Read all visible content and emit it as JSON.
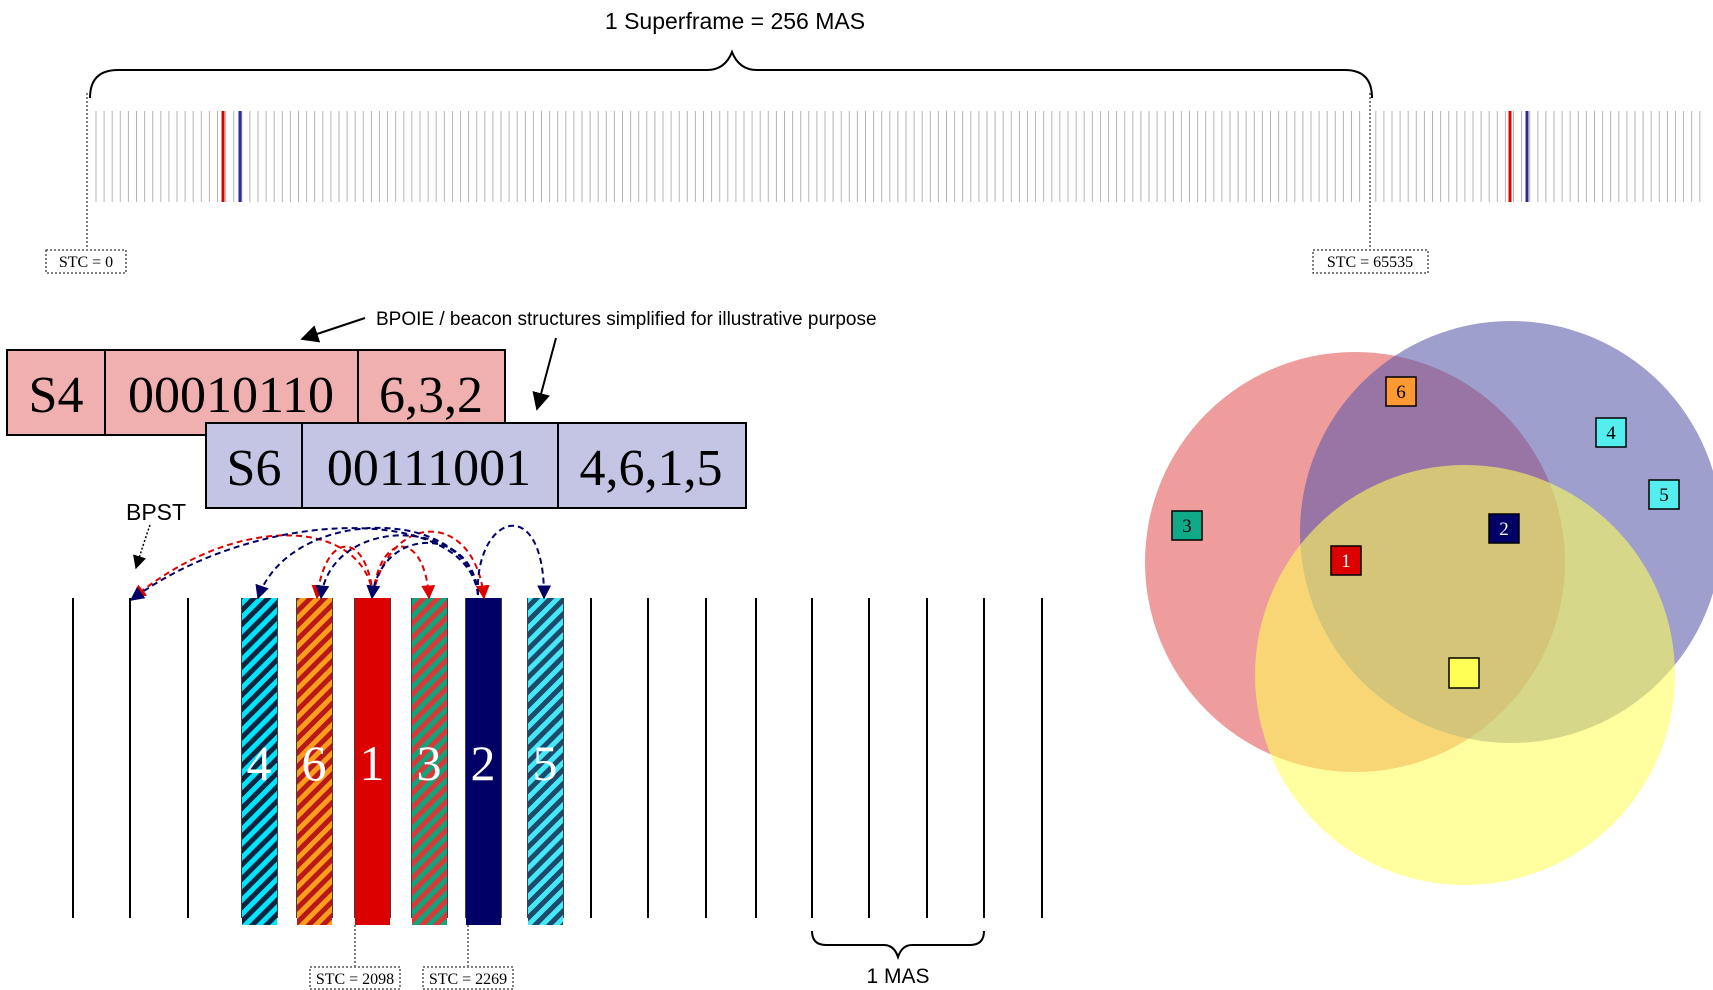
{
  "superframe": {
    "label": "1 Superframe = 256 MAS",
    "stc_start": "STC = 0",
    "stc_end": "STC = 65535"
  },
  "annotation": {
    "note": "BPOIE / beacon structures simplified for illustrative purpose",
    "bpst": "BPST"
  },
  "beacons": [
    {
      "name": "S4",
      "bitmap": "00010110",
      "neighbors": "6,3,2",
      "color": "#f1b0b0"
    },
    {
      "name": "S6",
      "bitmap": "00111001",
      "neighbors": "4,6,1,5",
      "color": "#c4c4e4"
    }
  ],
  "slots": [
    {
      "label": "4",
      "fill": "#00e5ff",
      "stripe": "#0a2540"
    },
    {
      "label": "6",
      "fill": "#ff9d1c",
      "stripe": "#b81818"
    },
    {
      "label": "1",
      "fill": "#dd0000",
      "stripe": ""
    },
    {
      "label": "3",
      "fill": "#11a37a",
      "stripe": "#d83a3a"
    },
    {
      "label": "2",
      "fill": "#000066",
      "stripe": ""
    },
    {
      "label": "5",
      "fill": "#44e8f8",
      "stripe": "#1d4a6a"
    }
  ],
  "slot_stc": {
    "left": "STC = 2098",
    "right": "STC = 2269"
  },
  "mas_label": "1 MAS",
  "venn": {
    "circles": [
      {
        "name": "red",
        "color": "#e25555"
      },
      {
        "name": "blue",
        "color": "#5a5aaa"
      },
      {
        "name": "yellow",
        "color": "#ffff5a"
      }
    ],
    "nodes": [
      {
        "label": "6",
        "fill": "#ff9933",
        "text_color": "#000000"
      },
      {
        "label": "4",
        "fill": "#55eeee",
        "text_color": "#000000"
      },
      {
        "label": "5",
        "fill": "#55eeee",
        "text_color": "#000000"
      },
      {
        "label": "3",
        "fill": "#11aa88",
        "text_color": "#000000"
      },
      {
        "label": "2",
        "fill": "#000066",
        "text_color": "#ffffff"
      },
      {
        "label": "1",
        "fill": "#dd0000",
        "text_color": "#ffffff"
      },
      {
        "label": "",
        "fill": "#ffff55",
        "text_color": "#000000"
      }
    ]
  },
  "arrow_colors": {
    "red": "#dd0000",
    "blue": "#000066"
  }
}
